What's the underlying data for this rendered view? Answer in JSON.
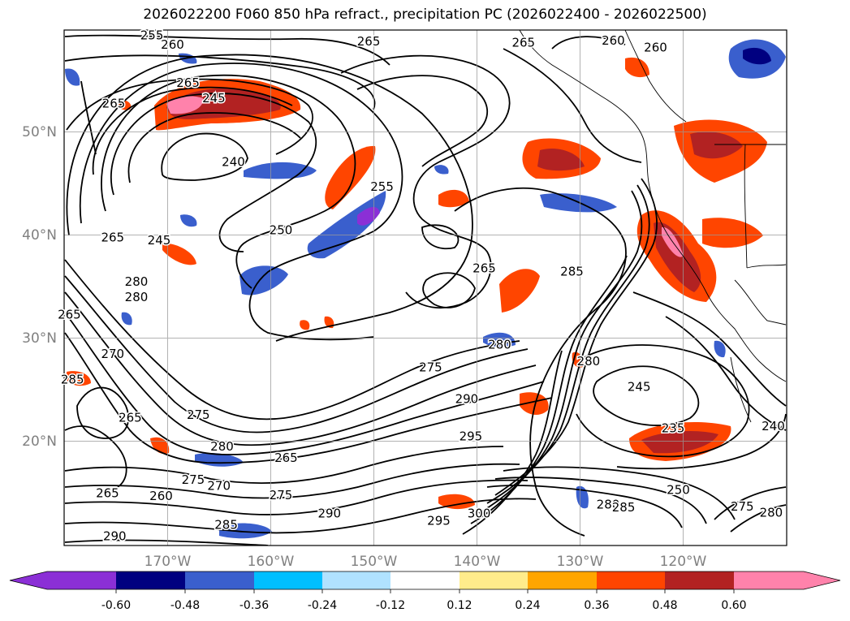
{
  "title": "2026022200 F060 850 hPa refract., precipitation PC (2026022400 - 2026022500)",
  "lon_labels": [
    "170°W",
    "160°W",
    "150°W",
    "140°W",
    "130°W",
    "120°W"
  ],
  "lat_labels": [
    "50°N",
    "40°N",
    "30°N",
    "20°N"
  ],
  "contour_labels": [
    {
      "text": "255",
      "lon": -171.5,
      "lat": 59.1
    },
    {
      "text": "260",
      "lon": -169.5,
      "lat": 58.2
    },
    {
      "text": "265",
      "lon": -150.5,
      "lat": 58.5
    },
    {
      "text": "265",
      "lon": -135.5,
      "lat": 58.4
    },
    {
      "text": "260",
      "lon": -126.8,
      "lat": 58.6
    },
    {
      "text": "260",
      "lon": -122.7,
      "lat": 57.9
    },
    {
      "text": "265",
      "lon": -168.0,
      "lat": 54.5
    },
    {
      "text": "245",
      "lon": -165.5,
      "lat": 53.0
    },
    {
      "text": "265",
      "lon": -175.2,
      "lat": 52.5
    },
    {
      "text": "240",
      "lon": -163.6,
      "lat": 46.8
    },
    {
      "text": "255",
      "lon": -149.2,
      "lat": 44.4
    },
    {
      "text": "250",
      "lon": -159.0,
      "lat": 40.2
    },
    {
      "text": "245",
      "lon": -170.8,
      "lat": 39.2
    },
    {
      "text": "265",
      "lon": -175.3,
      "lat": 39.5
    },
    {
      "text": "265",
      "lon": -139.3,
      "lat": 36.5
    },
    {
      "text": "285",
      "lon": -130.8,
      "lat": 36.2
    },
    {
      "text": "280",
      "lon": -173.0,
      "lat": 35.2
    },
    {
      "text": "280",
      "lon": -173.0,
      "lat": 33.7
    },
    {
      "text": "265",
      "lon": -179.5,
      "lat": 32.0
    },
    {
      "text": "280",
      "lon": -137.8,
      "lat": 29.1
    },
    {
      "text": "275",
      "lon": -144.5,
      "lat": 26.9
    },
    {
      "text": "280",
      "lon": -129.2,
      "lat": 27.5
    },
    {
      "text": "285",
      "lon": -179.2,
      "lat": 25.7
    },
    {
      "text": "245",
      "lon": -124.3,
      "lat": 25.0
    },
    {
      "text": "270",
      "lon": -175.3,
      "lat": 28.2
    },
    {
      "text": "290",
      "lon": -141.0,
      "lat": 23.8
    },
    {
      "text": "275",
      "lon": -167.0,
      "lat": 22.3
    },
    {
      "text": "265",
      "lon": -173.6,
      "lat": 22.0
    },
    {
      "text": "235",
      "lon": -121.0,
      "lat": 21.0
    },
    {
      "text": "240",
      "lon": -111.3,
      "lat": 21.2
    },
    {
      "text": "295",
      "lon": -140.6,
      "lat": 20.2
    },
    {
      "text": "280",
      "lon": -164.7,
      "lat": 19.2
    },
    {
      "text": "265",
      "lon": -158.5,
      "lat": 18.1
    },
    {
      "text": "275",
      "lon": -167.5,
      "lat": 16.0
    },
    {
      "text": "270",
      "lon": -165.0,
      "lat": 15.4
    },
    {
      "text": "260",
      "lon": -170.6,
      "lat": 14.4
    },
    {
      "text": "265",
      "lon": -175.8,
      "lat": 14.7
    },
    {
      "text": "275",
      "lon": -159.0,
      "lat": 14.5
    },
    {
      "text": "250",
      "lon": -120.5,
      "lat": 15.0
    },
    {
      "text": "275",
      "lon": -114.3,
      "lat": 13.4
    },
    {
      "text": "280",
      "lon": -111.5,
      "lat": 12.8
    },
    {
      "text": "280",
      "lon": -127.3,
      "lat": 13.6
    },
    {
      "text": "285",
      "lon": -125.8,
      "lat": 13.3
    },
    {
      "text": "300",
      "lon": -139.8,
      "lat": 12.7
    },
    {
      "text": "295",
      "lon": -143.7,
      "lat": 12.0
    },
    {
      "text": "290",
      "lon": -154.3,
      "lat": 12.7
    },
    {
      "text": "285",
      "lon": -164.3,
      "lat": 11.6
    },
    {
      "text": "290",
      "lon": -175.1,
      "lat": 10.5
    }
  ],
  "colorbar": {
    "ticks": [
      "-0.60",
      "-0.48",
      "-0.36",
      "-0.24",
      "-0.12",
      "0.12",
      "0.24",
      "0.36",
      "0.48",
      "0.60"
    ],
    "colors": [
      "#8b2fd6",
      "#000080",
      "#3a5fcd",
      "#00bfff",
      "#b0e2ff",
      "#ffffff",
      "#ffec8b",
      "#ffa500",
      "#ff4500",
      "#b22222",
      "#ff82ab",
      "#ff82ab"
    ]
  }
}
